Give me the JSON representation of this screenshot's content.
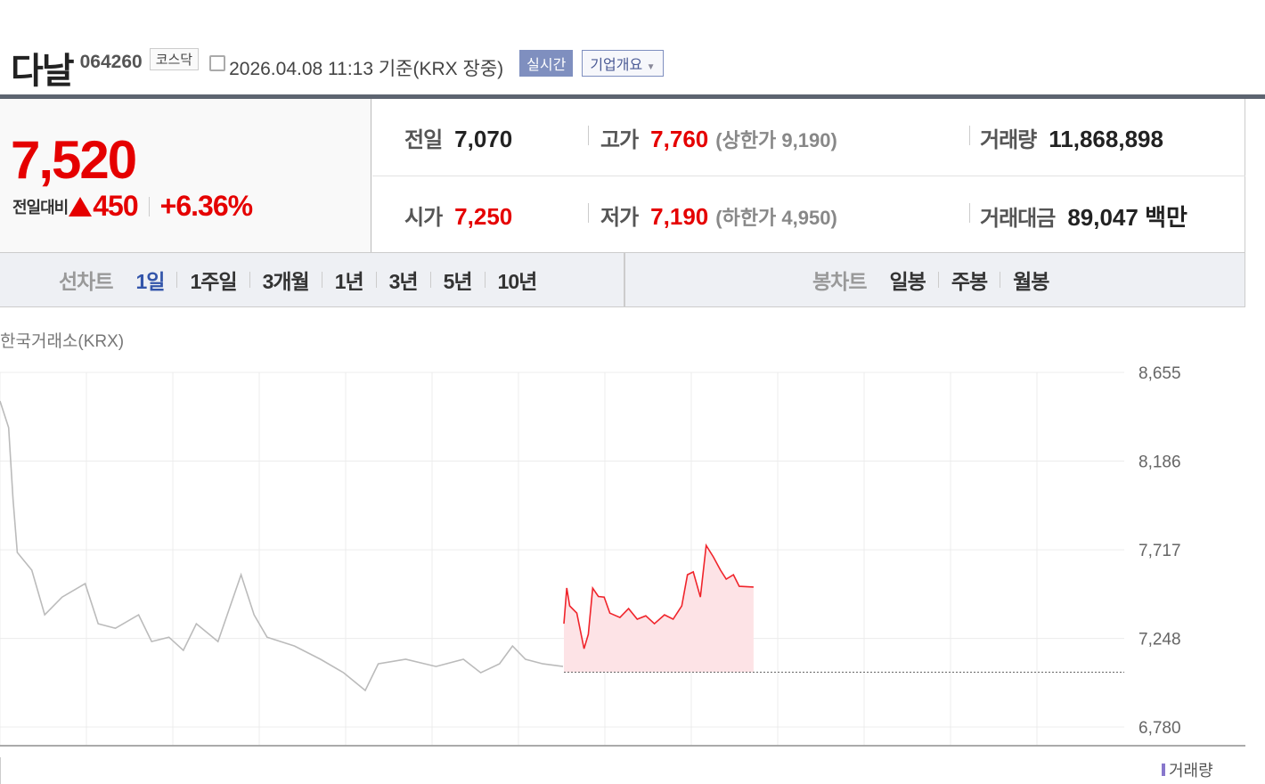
{
  "header": {
    "name": "다날",
    "code": "064260",
    "market": "코스닥",
    "datetime": "2026.04.08 11:13  기준(KRX 장중)",
    "realtime_label": "실시간",
    "overview_label": "기업개요"
  },
  "price": {
    "current": "7,520",
    "change_label": "전일대비",
    "change": "450",
    "change_pct": "+6.36%",
    "color_up": "#e50000"
  },
  "stats": {
    "prev_close": {
      "label": "전일",
      "value": "7,070"
    },
    "high": {
      "label": "고가",
      "value": "7,760",
      "sub": "(상한가 9,190)"
    },
    "volume": {
      "label": "거래량",
      "value": "11,868,898"
    },
    "open": {
      "label": "시가",
      "value": "7,250"
    },
    "low": {
      "label": "저가",
      "value": "7,190",
      "sub": "(하한가 4,950)"
    },
    "amount": {
      "label": "거래대금",
      "value": "89,047 백만"
    }
  },
  "line_tabs": {
    "label": "선차트",
    "items": [
      "1일",
      "1주일",
      "3개월",
      "1년",
      "3년",
      "5년",
      "10년"
    ],
    "active": "1일"
  },
  "candle_tabs": {
    "label": "봉차트",
    "items": [
      "일봉",
      "주봉",
      "월봉"
    ]
  },
  "chart_data": {
    "type": "line",
    "source_label": "한국거래소(KRX)",
    "y_ticks": [
      8655,
      8186,
      7717,
      7248,
      6780
    ],
    "y_tick_labels": [
      "8,655",
      "8,186",
      "7,717",
      "7,248",
      "6,780"
    ],
    "ylim": [
      6780,
      8655
    ],
    "grid": true,
    "reference_line": 7070,
    "session_minutes": 390,
    "series": [
      {
        "day": "previous",
        "color": "#bbbbbb",
        "points": [
          [
            0,
            8504
          ],
          [
            6,
            8363
          ],
          [
            9,
            7986
          ],
          [
            12,
            7703
          ],
          [
            22,
            7609
          ],
          [
            31,
            7373
          ],
          [
            43,
            7467
          ],
          [
            59,
            7538
          ],
          [
            68,
            7326
          ],
          [
            80,
            7302
          ],
          [
            96,
            7373
          ],
          [
            105,
            7232
          ],
          [
            117,
            7255
          ],
          [
            127,
            7185
          ],
          [
            136,
            7326
          ],
          [
            151,
            7232
          ],
          [
            167,
            7585
          ],
          [
            176,
            7373
          ],
          [
            185,
            7255
          ],
          [
            204,
            7208
          ],
          [
            222,
            7138
          ],
          [
            238,
            7067
          ],
          [
            253,
            6973
          ],
          [
            262,
            7114
          ],
          [
            281,
            7138
          ],
          [
            302,
            7100
          ],
          [
            321,
            7138
          ],
          [
            333,
            7067
          ],
          [
            346,
            7114
          ],
          [
            355,
            7208
          ],
          [
            364,
            7138
          ],
          [
            376,
            7114
          ],
          [
            390,
            7100
          ]
        ]
      },
      {
        "day": "today",
        "color": "#f0242b",
        "fill": "#fde3e6",
        "points": [
          [
            0,
            7326
          ],
          [
            2,
            7515
          ],
          [
            4,
            7420
          ],
          [
            9,
            7382
          ],
          [
            14,
            7194
          ],
          [
            17,
            7270
          ],
          [
            20,
            7514
          ],
          [
            24,
            7470
          ],
          [
            28,
            7467
          ],
          [
            32,
            7382
          ],
          [
            39,
            7359
          ],
          [
            45,
            7406
          ],
          [
            51,
            7350
          ],
          [
            57,
            7368
          ],
          [
            63,
            7326
          ],
          [
            70,
            7373
          ],
          [
            76,
            7350
          ],
          [
            82,
            7420
          ],
          [
            86,
            7585
          ],
          [
            90,
            7600
          ],
          [
            95,
            7467
          ],
          [
            99,
            7740
          ],
          [
            104,
            7680
          ],
          [
            109,
            7609
          ],
          [
            113,
            7562
          ],
          [
            118,
            7585
          ],
          [
            122,
            7524
          ],
          [
            132,
            7520
          ]
        ]
      }
    ],
    "volume_label": "거래량"
  }
}
